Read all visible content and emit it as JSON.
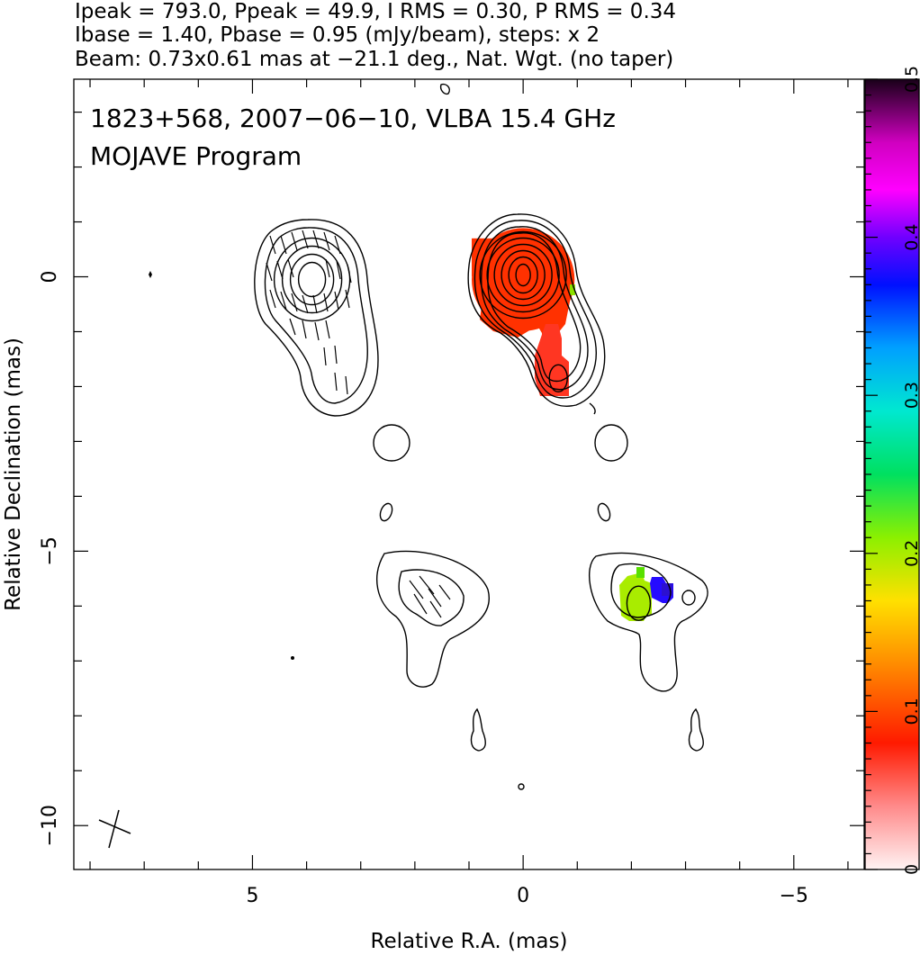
{
  "header": {
    "line1": "Ipeak = 793.0, Ppeak = 49.9, I RMS = 0.30, P RMS = 0.34",
    "line2": "Ibase = 1.40, Pbase = 0.95 (mJy/beam), steps: x 2",
    "line3": "Beam: 0.73x0.61 mas at −21.1 deg., Nat. Wgt. (no taper)"
  },
  "annotation": {
    "line1": "1823+568, 2007−06−10, VLBA 15.4 GHz",
    "line2": "MOJAVE Program"
  },
  "chart_data": {
    "type": "heatmap",
    "xlabel": "Relative R.A. (mas)",
    "ylabel": "Relative Declination (mas)",
    "xlim": [
      8.3,
      -6.3
    ],
    "ylim": [
      -10.8,
      3.6
    ],
    "xticks": [
      5,
      0,
      -5
    ],
    "xtick_labels": [
      "5",
      "0",
      "−5"
    ],
    "yticks": [
      0,
      -5,
      -10
    ],
    "ytick_labels": [
      "0",
      "−5",
      "−10"
    ],
    "colorbar": {
      "range": [
        0,
        0.5
      ],
      "ticks": [
        0,
        0.1,
        0.2,
        0.3,
        0.4,
        0.5
      ],
      "tick_labels": [
        "0",
        "0.1",
        "0.2",
        "0.3",
        "0.4",
        "0.5"
      ]
    },
    "contour_components": [
      {
        "name": "core-stokes-I",
        "x": 0.0,
        "y": 0.0
      },
      {
        "name": "jet-knot-stokes-I",
        "x": -0.65,
        "y": -1.85
      },
      {
        "name": "core-polarization",
        "x": 3.9,
        "y": 0.0
      },
      {
        "name": "lower-left-component",
        "x": 2.2,
        "y": -5.9
      },
      {
        "name": "lower-right-component",
        "x": -2.1,
        "y": -5.9
      }
    ],
    "fractional_polarization_regions": [
      {
        "region": "core",
        "value": 0.09
      },
      {
        "region": "jet-knot",
        "value": 0.07
      },
      {
        "region": "lower-right-left-half",
        "value": 0.2
      },
      {
        "region": "lower-right-right-half",
        "value": 0.38
      }
    ]
  }
}
